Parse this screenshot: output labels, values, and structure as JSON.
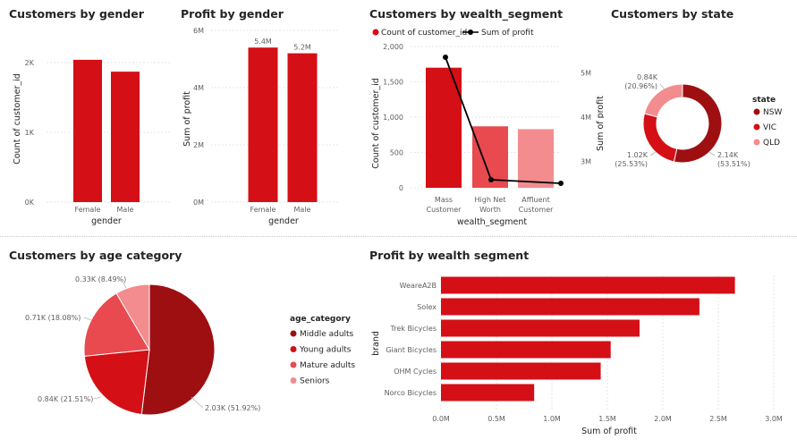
{
  "colors": {
    "primary": "#d40f16",
    "dark": "#9e0f12",
    "medium": "#e84a4f",
    "light": "#f28c8e",
    "line": "#000000",
    "grid": "#e6e6e6"
  },
  "chart_data": [
    {
      "id": "gender_customers",
      "type": "bar",
      "title": "Customers by gender",
      "xlabel": "gender",
      "ylabel": "Count of customer_id",
      "categories": [
        "Female",
        "Male"
      ],
      "values": [
        2040,
        1870
      ],
      "yticks": [
        "0K",
        "1K",
        "2K"
      ],
      "ylim": [
        0,
        2300
      ]
    },
    {
      "id": "gender_profit",
      "type": "bar",
      "title": "Profit by gender",
      "xlabel": "gender",
      "ylabel": "Sum of profit",
      "categories": [
        "Female",
        "Male"
      ],
      "values": [
        5.4,
        5.2
      ],
      "data_labels": [
        "5.4M",
        "5.2M"
      ],
      "yticks": [
        "0M",
        "2M",
        "4M",
        "6M"
      ],
      "ylim": [
        0,
        6
      ]
    },
    {
      "id": "wealth_segment",
      "type": "bar",
      "title": "Customers by wealth_segment",
      "xlabel": "wealth_segment",
      "ylabel": "Count of customer_id",
      "y2label": "Sum of profit",
      "categories": [
        "Mass Customer",
        "High Net Worth",
        "Affluent Customer"
      ],
      "legend": [
        "Count of customer_id",
        "Sum of profit"
      ],
      "series": [
        {
          "name": "Count of customer_id",
          "values": [
            1700,
            870,
            830
          ]
        },
        {
          "name": "Sum of profit",
          "values": [
            5.35,
            2.65,
            2.55
          ]
        }
      ],
      "yticks": [
        "0",
        "500",
        "1,000",
        "1,500",
        "2,000"
      ],
      "ylim": [
        0,
        2000
      ],
      "y2ticks": [
        "3M",
        "4M",
        "5M"
      ],
      "y2lim": [
        2.4,
        5.6
      ]
    },
    {
      "id": "state",
      "type": "pie",
      "title": "Customers by state",
      "legend_title": "state",
      "labels": [
        "NSW",
        "VIC",
        "QLD"
      ],
      "values": [
        2.14,
        1.02,
        0.84
      ],
      "slice_labels": [
        "2.14K (53.51%)",
        "1.02K (25.53%)",
        "0.84K (20.96%)"
      ]
    },
    {
      "id": "age_category",
      "type": "pie",
      "title": "Customers by age category",
      "legend_title": "age_category",
      "labels": [
        "Middle adults",
        "Young adults",
        "Mature adults",
        "Seniors"
      ],
      "values": [
        2.03,
        0.84,
        0.71,
        0.33
      ],
      "slice_labels": [
        "2.03K (51.92%)",
        "0.84K (21.51%)",
        "0.71K (18.08%)",
        "0.33K (8.49%)"
      ]
    },
    {
      "id": "brand_profit",
      "type": "bar",
      "orientation": "horizontal",
      "title": "Profit by wealth segment",
      "xlabel": "Sum of profit",
      "ylabel": "brand",
      "categories": [
        "WeareA2B",
        "Solex",
        "Trek Bicycles",
        "Giant Bicycles",
        "OHM Cycles",
        "Norco Bicycles"
      ],
      "values": [
        2.65,
        2.33,
        1.79,
        1.53,
        1.44,
        0.84
      ],
      "xticks": [
        "0.0M",
        "0.5M",
        "1.0M",
        "1.5M",
        "2.0M",
        "2.5M",
        "3.0M"
      ],
      "xlim": [
        0,
        3.0
      ]
    }
  ]
}
